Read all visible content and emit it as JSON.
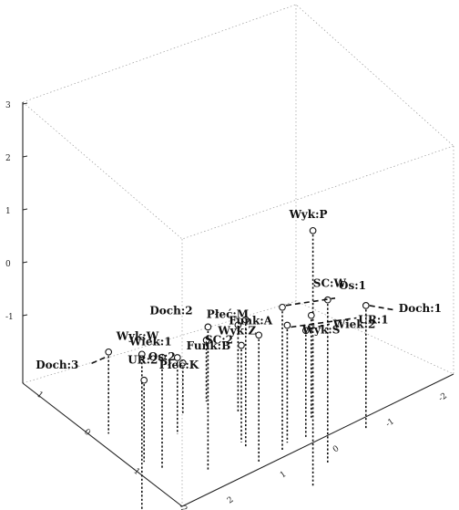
{
  "chart_data": {
    "type": "scatter",
    "subtype": "3d-scatter-with-drop-lines",
    "title": "",
    "xlabel": "",
    "ylabel": "",
    "zlabel": "",
    "grid": false,
    "z_ticks": [
      "3",
      "2",
      "1",
      "0",
      "-1"
    ],
    "x_ticks": [
      "1",
      "0",
      "-1",
      "-2"
    ],
    "y_ticks": [
      "2",
      "1",
      "0",
      "-1",
      "-2"
    ],
    "points": [
      {
        "label": "Wyk:P",
        "x": 0.4,
        "y": 1.1,
        "z": 3.0
      },
      {
        "label": "Wyk:W",
        "x": -1.3,
        "y": 0.8,
        "z": 1.1
      },
      {
        "label": "Doch:2",
        "x": -0.4,
        "y": 0.4,
        "z": 0.8
      },
      {
        "label": "SC:W",
        "x": 0.7,
        "y": 0.8,
        "z": 1.2
      },
      {
        "label": "Funk:A",
        "x": 0.1,
        "y": 0.5,
        "z": 0.5
      },
      {
        "label": "Os:1",
        "x": 0.4,
        "y": 0.4,
        "z": 0.8
      },
      {
        "label": "UR:1",
        "x": 0.5,
        "y": 0.3,
        "z": 0.3
      },
      {
        "label": "Płeć:M",
        "x": 0.1,
        "y": 0.2,
        "z": 0.5
      },
      {
        "label": "Wiek:1",
        "x": -0.8,
        "y": 0.2,
        "z": 0.2
      },
      {
        "label": "SC:2",
        "x": 0.1,
        "y": 0.1,
        "z": -0.1
      },
      {
        "label": "Wiek:2",
        "x": 0.7,
        "y": 0.3,
        "z": 0.1
      },
      {
        "label": "UR:2",
        "x": -0.9,
        "y": 0.0,
        "z": -0.4
      },
      {
        "label": "Doch:1",
        "x": 1.3,
        "y": 0.4,
        "z": 0.4
      },
      {
        "label": "Wyk:Z",
        "x": 0.3,
        "y": -0.4,
        "z": -0.3
      },
      {
        "label": "Wyk:S",
        "x": 0.9,
        "y": 0.0,
        "z": 0.0
      },
      {
        "label": "Doch:3",
        "x": -1.0,
        "y": -0.6,
        "z": -0.4
      },
      {
        "label": "Os:2",
        "x": -0.4,
        "y": -0.3,
        "z": -0.5
      },
      {
        "label": "Funk:B",
        "x": 0.1,
        "y": -0.7,
        "z": -0.8
      },
      {
        "label": "Płeć:K",
        "x": -0.2,
        "y": -0.6,
        "z": -1.0
      }
    ]
  }
}
